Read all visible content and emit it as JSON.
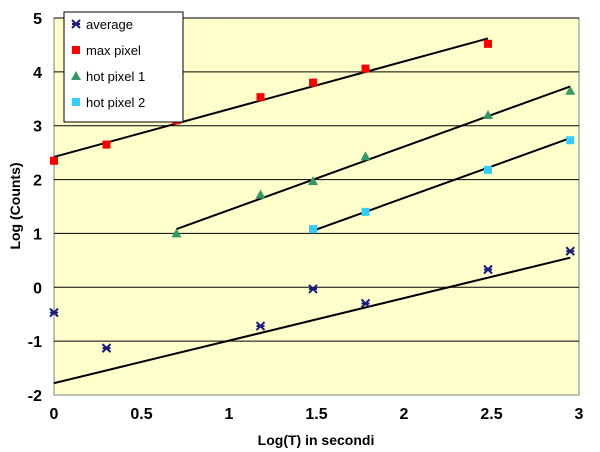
{
  "chart_data": {
    "type": "scatter",
    "title": "",
    "xlabel": "Log(T) in secondi",
    "ylabel": "Log (Counts)",
    "xlim": [
      0,
      3
    ],
    "ylim": [
      -2,
      5
    ],
    "xticks": [
      "0",
      "0.5",
      "1",
      "1.5",
      "2",
      "2.5",
      "3"
    ],
    "yticks": [
      "-2",
      "-1",
      "0",
      "1",
      "2",
      "3",
      "4",
      "5"
    ],
    "plot_background": "#FFFFCC",
    "grid": "horizontal",
    "legend_position": "top-left",
    "series": [
      {
        "name": "average",
        "marker": "star",
        "color": "#1A1A80",
        "points": [
          [
            0,
            -0.47
          ],
          [
            0.3,
            -1.13
          ],
          [
            1.18,
            -0.72
          ],
          [
            1.48,
            -0.03
          ],
          [
            1.78,
            -0.3
          ],
          [
            2.48,
            0.33
          ],
          [
            2.95,
            0.67
          ]
        ],
        "trendline": [
          [
            0,
            -1.78
          ],
          [
            2.95,
            0.55
          ]
        ]
      },
      {
        "name": "max pixel",
        "marker": "square",
        "color": "#FF0000",
        "points": [
          [
            0,
            2.35
          ],
          [
            0.3,
            2.65
          ],
          [
            0.7,
            3.1
          ],
          [
            1.18,
            3.53
          ],
          [
            1.48,
            3.8
          ],
          [
            1.78,
            4.06
          ],
          [
            2.48,
            4.52
          ]
        ],
        "trendline": [
          [
            0,
            2.42
          ],
          [
            2.48,
            4.62
          ]
        ]
      },
      {
        "name": "hot pixel 1",
        "marker": "triangle",
        "color": "#339966",
        "points": [
          [
            0.7,
            1.0
          ],
          [
            1.18,
            1.72
          ],
          [
            1.48,
            1.97
          ],
          [
            1.78,
            2.43
          ],
          [
            2.48,
            3.2
          ],
          [
            2.95,
            3.65
          ]
        ],
        "trendline": [
          [
            0.7,
            1.08
          ],
          [
            2.95,
            3.73
          ]
        ]
      },
      {
        "name": "hot pixel 2",
        "marker": "square",
        "color": "#33CCFF",
        "points": [
          [
            1.48,
            1.08
          ],
          [
            1.78,
            1.4
          ],
          [
            2.48,
            2.18
          ],
          [
            2.95,
            2.73
          ]
        ],
        "trendline": [
          [
            1.48,
            1.05
          ],
          [
            2.95,
            2.77
          ]
        ]
      }
    ]
  }
}
